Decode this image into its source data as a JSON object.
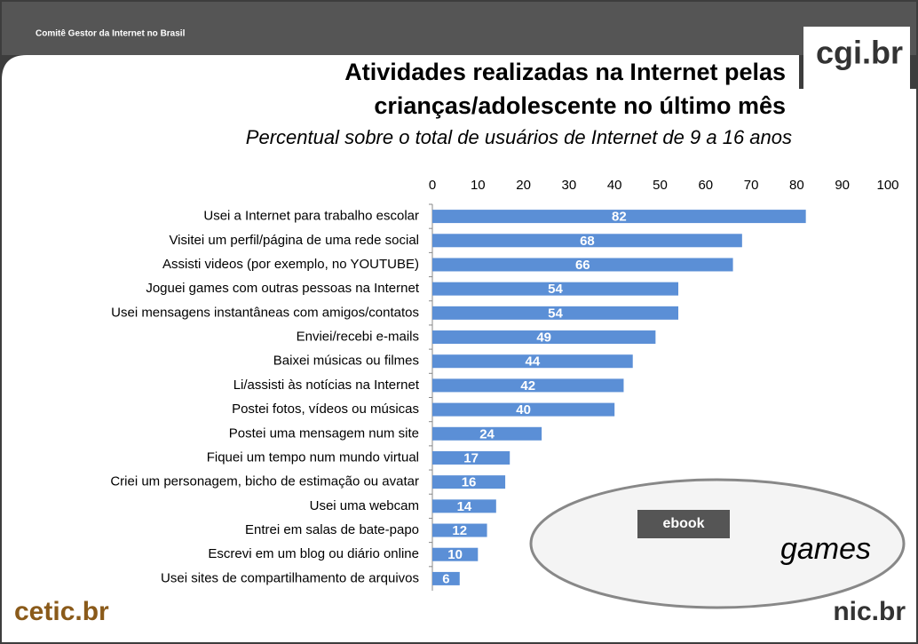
{
  "header": {
    "org": "Comitê Gestor da Internet no Brasil",
    "logo_top": "cgi.br",
    "logo_left": "cetic.br",
    "logo_right": "nic.br"
  },
  "illustration": {
    "badge": "ebook",
    "caption": "games"
  },
  "chart_data": {
    "type": "hbar",
    "title": "Atividades realizadas na Internet pelas crianças/adolescente no último mês",
    "subtitle": "Percentual sobre o total de usuários de Internet de 9 a 16 anos",
    "categories": [
      "Usei a Internet para trabalho escolar",
      "Visitei um perfil/página de uma rede social",
      "Assisti videos (por exemplo, no YOUTUBE)",
      "Joguei games com outras pessoas na Internet",
      "Usei mensagens instantâneas com amigos/contatos",
      "Enviei/recebi e-mails",
      "Baixei músicas ou filmes",
      "Li/assisti às notícias na Internet",
      "Postei fotos, vídeos ou músicas",
      "Postei uma mensagem num site",
      "Fiquei um tempo num mundo virtual",
      "Criei um personagem, bicho de estimação ou avatar",
      "Usei uma webcam",
      "Entrei em salas de bate-papo",
      "Escrevi em um blog ou diário online",
      "Usei sites de compartilhamento de arquivos"
    ],
    "values": [
      82,
      68,
      66,
      54,
      54,
      49,
      44,
      42,
      40,
      24,
      17,
      16,
      14,
      12,
      10,
      6
    ],
    "color": "#5b8fd6",
    "xlim": [
      0,
      100
    ],
    "xticks": [
      0,
      10,
      20,
      30,
      40,
      50,
      60,
      70,
      80,
      90,
      100
    ],
    "grid": false
  }
}
